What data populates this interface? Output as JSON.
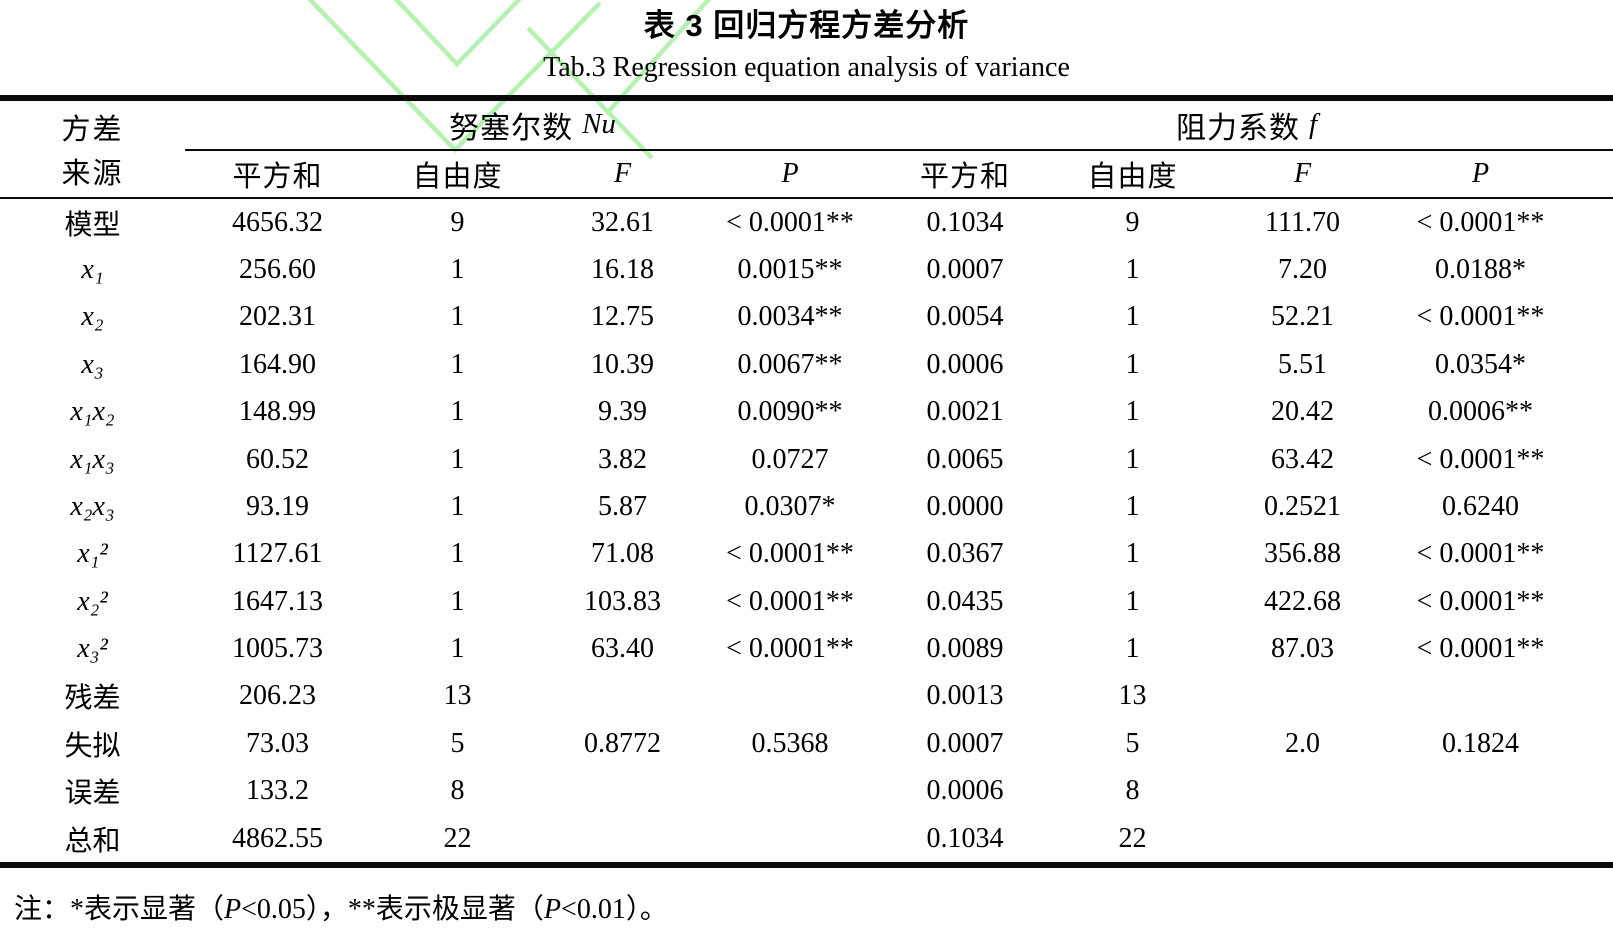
{
  "page": {
    "title_cn": "表 3  回归方程方差分析",
    "title_en": "Tab.3 Regression equation analysis of variance"
  },
  "table": {
    "row_header": {
      "line1": "方差",
      "line2": "来源"
    },
    "groups": [
      {
        "name": "努塞尔数",
        "symbol": "Nu",
        "columns": [
          "平方和",
          "自由度",
          "F",
          "P"
        ]
      },
      {
        "name": "阻力系数",
        "symbol": "f",
        "columns": [
          "平方和",
          "自由度",
          "F",
          "P"
        ]
      }
    ],
    "rows": [
      {
        "label": "模型",
        "values": [
          "4656.32",
          "9",
          "32.61",
          "< 0.0001**",
          "0.1034",
          "9",
          "111.70",
          "< 0.0001**"
        ]
      },
      {
        "label": "x₁",
        "values": [
          "256.60",
          "1",
          "16.18",
          "0.0015**",
          "0.0007",
          "1",
          "7.20",
          "0.0188*"
        ]
      },
      {
        "label": "x₂",
        "values": [
          "202.31",
          "1",
          "12.75",
          "0.0034**",
          "0.0054",
          "1",
          "52.21",
          "< 0.0001**"
        ]
      },
      {
        "label": "x₃",
        "values": [
          "164.90",
          "1",
          "10.39",
          "0.0067**",
          "0.0006",
          "1",
          "5.51",
          "0.0354*"
        ]
      },
      {
        "label": "x₁x₂",
        "values": [
          "148.99",
          "1",
          "9.39",
          "0.0090**",
          "0.0021",
          "1",
          "20.42",
          "0.0006**"
        ]
      },
      {
        "label": "x₁x₃",
        "values": [
          "60.52",
          "1",
          "3.82",
          "0.0727",
          "0.0065",
          "1",
          "63.42",
          "< 0.0001**"
        ]
      },
      {
        "label": "x₂x₃",
        "values": [
          "93.19",
          "1",
          "5.87",
          "0.0307*",
          "0.0000",
          "1",
          "0.2521",
          "0.6240"
        ]
      },
      {
        "label": "x₁²",
        "values": [
          "1127.61",
          "1",
          "71.08",
          "< 0.0001**",
          "0.0367",
          "1",
          "356.88",
          "< 0.0001**"
        ]
      },
      {
        "label": "x₂²",
        "values": [
          "1647.13",
          "1",
          "103.83",
          "< 0.0001**",
          "0.0435",
          "1",
          "422.68",
          "< 0.0001**"
        ]
      },
      {
        "label": "x₃²",
        "values": [
          "1005.73",
          "1",
          "63.40",
          "< 0.0001**",
          "0.0089",
          "1",
          "87.03",
          "< 0.0001**"
        ]
      },
      {
        "label": "残差",
        "values": [
          "206.23",
          "13",
          "",
          "",
          "0.0013",
          "13",
          "",
          ""
        ]
      },
      {
        "label": "失拟",
        "values": [
          "73.03",
          "5",
          "0.8772",
          "0.5368",
          "0.0007",
          "5",
          "2.0",
          "0.1824"
        ]
      },
      {
        "label": "误差",
        "values": [
          "133.2",
          "8",
          "",
          "",
          "0.0006",
          "8",
          "",
          ""
        ]
      },
      {
        "label": "总和",
        "values": [
          "4862.55",
          "22",
          "",
          "",
          "0.1034",
          "22",
          "",
          ""
        ]
      }
    ]
  },
  "footnote": {
    "parts": [
      "注：*表示显著（",
      "P",
      "<0.05），**表示极显著（",
      "P",
      "<0.01）。"
    ]
  },
  "watermark": {
    "color": "#aef0a8"
  }
}
